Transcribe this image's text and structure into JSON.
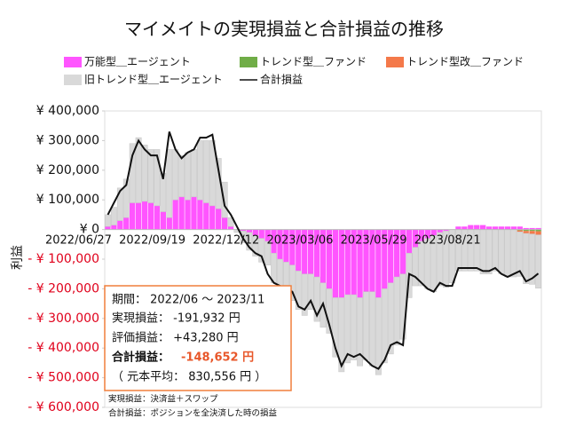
{
  "chart_data": {
    "type": "bar",
    "title": "マイメイトの実現損益と合計損益の推移",
    "y_label": "利益",
    "categories": [
      "2022/06/27",
      null,
      null,
      null,
      null,
      null,
      null,
      null,
      null,
      null,
      null,
      null,
      "2022/09/19",
      null,
      null,
      null,
      null,
      null,
      null,
      null,
      null,
      null,
      null,
      null,
      "2022/12/12",
      null,
      null,
      null,
      null,
      null,
      null,
      null,
      null,
      null,
      null,
      null,
      "2023/03/06",
      null,
      null,
      null,
      null,
      null,
      null,
      null,
      null,
      null,
      null,
      null,
      "2023/05/29",
      null,
      null,
      null,
      null,
      null,
      null,
      null,
      null,
      null,
      null,
      null,
      "2023/08/21",
      null,
      null,
      null,
      null,
      null,
      null,
      null,
      null,
      null,
      null
    ],
    "ylim": [
      -600000,
      400000
    ],
    "yticks": [
      {
        "value": 400000,
        "label": "¥ 400,000"
      },
      {
        "value": 300000,
        "label": "¥ 300,000"
      },
      {
        "value": 200000,
        "label": "¥ 200,000"
      },
      {
        "value": 100000,
        "label": "¥ 100,000"
      },
      {
        "value": 0,
        "label": "¥ 0"
      },
      {
        "value": -100000,
        "label": "- ¥ 100,000"
      },
      {
        "value": -200000,
        "label": "- ¥ 200,000"
      },
      {
        "value": -300000,
        "label": "- ¥ 300,000"
      },
      {
        "value": -400000,
        "label": "- ¥ 400,000"
      },
      {
        "value": -500000,
        "label": "- ¥ 500,000"
      },
      {
        "value": -600000,
        "label": "- ¥ 600,000"
      }
    ],
    "series": [
      {
        "name": "万能型＿エージェント",
        "color": "#ff55ff",
        "type": "bar",
        "values": [
          10000,
          15000,
          30000,
          40000,
          90000,
          90000,
          95000,
          90000,
          80000,
          60000,
          40000,
          100000,
          110000,
          100000,
          110000,
          100000,
          90000,
          80000,
          70000,
          40000,
          10000,
          0,
          -5000,
          -10000,
          -20000,
          -30000,
          -40000,
          -80000,
          -100000,
          -110000,
          -120000,
          -140000,
          -150000,
          -150000,
          -160000,
          -180000,
          -200000,
          -230000,
          -230000,
          -220000,
          -220000,
          -230000,
          -210000,
          -210000,
          -230000,
          -200000,
          -180000,
          -160000,
          -150000,
          -80000,
          -60000,
          -40000,
          -30000,
          -20000,
          -10000,
          -5000,
          0,
          10000,
          10000,
          15000,
          15000,
          15000,
          10000,
          10000,
          10000,
          10000,
          10000,
          10000,
          5000,
          5000,
          5000
        ]
      },
      {
        "name": "トレンド型＿ファンド",
        "color": "#70ad47",
        "type": "bar",
        "values": [
          0,
          0,
          0,
          0,
          0,
          0,
          0,
          0,
          0,
          0,
          0,
          0,
          0,
          0,
          0,
          0,
          0,
          0,
          0,
          0,
          0,
          0,
          0,
          0,
          0,
          0,
          0,
          0,
          0,
          0,
          0,
          0,
          0,
          0,
          0,
          0,
          0,
          0,
          0,
          0,
          0,
          0,
          0,
          0,
          0,
          0,
          0,
          0,
          0,
          0,
          0,
          0,
          0,
          0,
          0,
          0,
          0,
          0,
          0,
          0,
          0,
          0,
          0,
          0,
          0,
          0,
          0,
          -3000,
          -5000,
          -5000,
          -6000
        ]
      },
      {
        "name": "トレンド型改＿ファンド",
        "color": "#f4794a",
        "type": "bar",
        "values": [
          0,
          0,
          0,
          0,
          0,
          0,
          0,
          0,
          0,
          0,
          0,
          0,
          0,
          0,
          0,
          0,
          0,
          0,
          0,
          0,
          0,
          0,
          0,
          0,
          0,
          0,
          0,
          0,
          0,
          0,
          0,
          0,
          0,
          0,
          0,
          0,
          0,
          0,
          0,
          0,
          0,
          0,
          0,
          0,
          0,
          0,
          0,
          0,
          0,
          0,
          0,
          0,
          0,
          0,
          0,
          0,
          0,
          0,
          0,
          0,
          0,
          0,
          0,
          0,
          0,
          0,
          0,
          -5000,
          -8000,
          -10000,
          -12000
        ]
      },
      {
        "name": "旧トレンド型＿エージェント",
        "color": "#d9d9d9",
        "type": "bar",
        "values": [
          40000,
          60000,
          110000,
          130000,
          200000,
          220000,
          190000,
          180000,
          190000,
          130000,
          230000,
          170000,
          140000,
          160000,
          160000,
          200000,
          210000,
          220000,
          170000,
          120000,
          30000,
          -10000,
          -40000,
          -60000,
          -70000,
          -80000,
          -80000,
          -100000,
          -100000,
          -100000,
          -120000,
          -130000,
          -140000,
          -120000,
          -150000,
          -150000,
          -150000,
          -200000,
          -250000,
          -230000,
          -220000,
          -230000,
          -230000,
          -250000,
          -260000,
          -250000,
          -240000,
          -230000,
          -220000,
          -150000,
          -130000,
          -150000,
          -170000,
          -190000,
          -180000,
          -190000,
          -180000,
          -140000,
          -140000,
          -140000,
          -140000,
          -150000,
          -150000,
          -140000,
          -150000,
          -160000,
          -160000,
          -150000,
          -170000,
          -170000,
          -180000
        ]
      },
      {
        "name": "合計損益",
        "color": "#111111",
        "type": "line",
        "values": [
          50000,
          90000,
          130000,
          150000,
          250000,
          300000,
          270000,
          250000,
          250000,
          170000,
          330000,
          270000,
          240000,
          260000,
          270000,
          310000,
          310000,
          320000,
          200000,
          80000,
          50000,
          10000,
          -30000,
          -60000,
          -80000,
          -90000,
          -150000,
          -180000,
          -190000,
          -200000,
          -210000,
          -260000,
          -270000,
          -240000,
          -290000,
          -250000,
          -320000,
          -400000,
          -460000,
          -420000,
          -430000,
          -420000,
          -440000,
          -460000,
          -470000,
          -440000,
          -390000,
          -380000,
          -390000,
          -150000,
          -160000,
          -180000,
          -200000,
          -210000,
          -180000,
          -190000,
          -190000,
          -130000,
          -130000,
          -130000,
          -130000,
          -140000,
          -140000,
          -130000,
          -150000,
          -160000,
          -150000,
          -140000,
          -175000,
          -165000,
          -148652
        ]
      }
    ],
    "summary": {
      "period": "期間：  2022/06 〜 2023/11",
      "realized": "実現損益：  -191,932 円",
      "unrealized": "評価損益：  +43,280 円",
      "total_label": "合計損益：",
      "total_value": "-148,652 円",
      "average": "（ 元本平均：  830,556 円 ）"
    },
    "notes": [
      "実現損益：決済益＋スワップ",
      "合計損益：ポジションを全決済した時の損益"
    ]
  }
}
